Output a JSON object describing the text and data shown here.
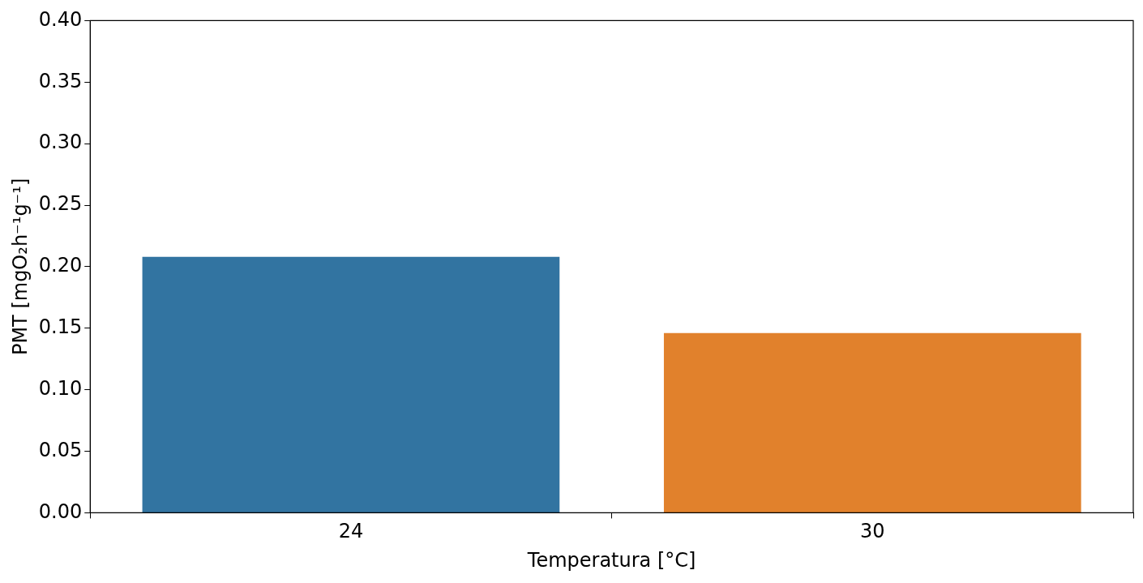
{
  "chart_data": {
    "type": "bar",
    "xlabel": "Temperatura [°C]",
    "ylabel": "PMT [mgO₂h⁻¹g⁻¹]",
    "categories": [
      "24",
      "30"
    ],
    "values": [
      0.208,
      0.146
    ],
    "colors": [
      "#3274a1",
      "#e1812c"
    ],
    "ylim": [
      0,
      0.4
    ],
    "yticks": [
      {
        "value": 0,
        "label": "0.00"
      },
      {
        "value": 0.05,
        "label": "0.05"
      },
      {
        "value": 0.1,
        "label": "0.10"
      },
      {
        "value": 0.15,
        "label": "0.15"
      },
      {
        "value": 0.2,
        "label": "0.20"
      },
      {
        "value": 0.25,
        "label": "0.25"
      },
      {
        "value": 0.3,
        "label": "0.30"
      },
      {
        "value": 0.35,
        "label": "0.35"
      },
      {
        "value": 0.4,
        "label": "0.40"
      }
    ]
  }
}
